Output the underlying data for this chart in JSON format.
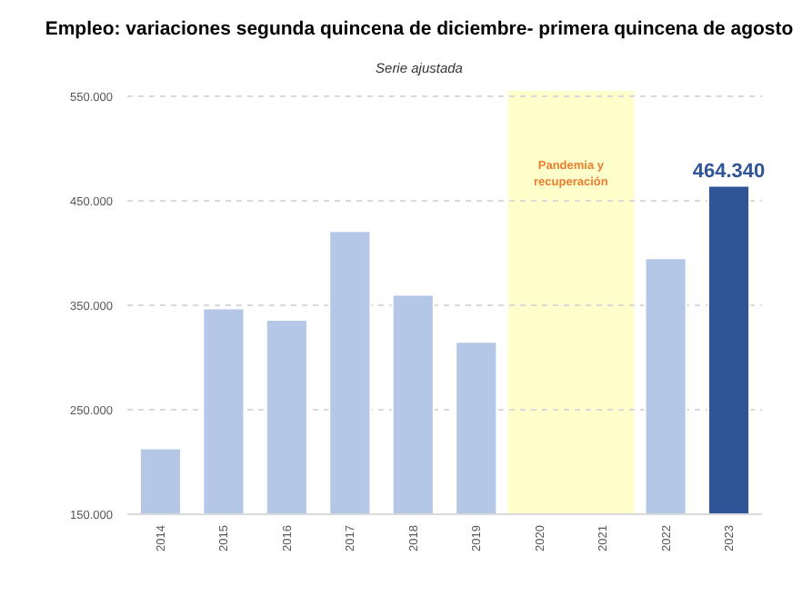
{
  "chart_data": {
    "type": "bar",
    "title": "Empleo: variaciones segunda quincena de diciembre- primera quincena de agosto",
    "subtitle": "Serie ajustada",
    "categories": [
      "2014",
      "2015",
      "2016",
      "2017",
      "2018",
      "2019",
      "2020",
      "2021",
      "2022",
      "2023"
    ],
    "values": [
      213000,
      347000,
      336000,
      421000,
      360000,
      315000,
      null,
      null,
      395000,
      464340
    ],
    "colors": [
      "#b4c7e7",
      "#b4c7e7",
      "#b4c7e7",
      "#b4c7e7",
      "#b4c7e7",
      "#b4c7e7",
      null,
      null,
      "#b4c7e7",
      "#2f5597"
    ],
    "value_labels": [
      null,
      null,
      null,
      null,
      null,
      null,
      null,
      null,
      null,
      "464.340"
    ],
    "ylim": [
      150000,
      550000
    ],
    "yticks": [
      {
        "value": 150000,
        "label": "150.000"
      },
      {
        "value": 250000,
        "label": "250.000"
      },
      {
        "value": 350000,
        "label": "350.000"
      },
      {
        "value": 450000,
        "label": "450.000"
      },
      {
        "value": 550000,
        "label": "550.000"
      }
    ],
    "grid": "y",
    "bands": [
      {
        "axis": "x",
        "from": "2020",
        "to": "2021",
        "label": "Pandemia y recuperación",
        "color": "#ffffcc"
      }
    ]
  }
}
